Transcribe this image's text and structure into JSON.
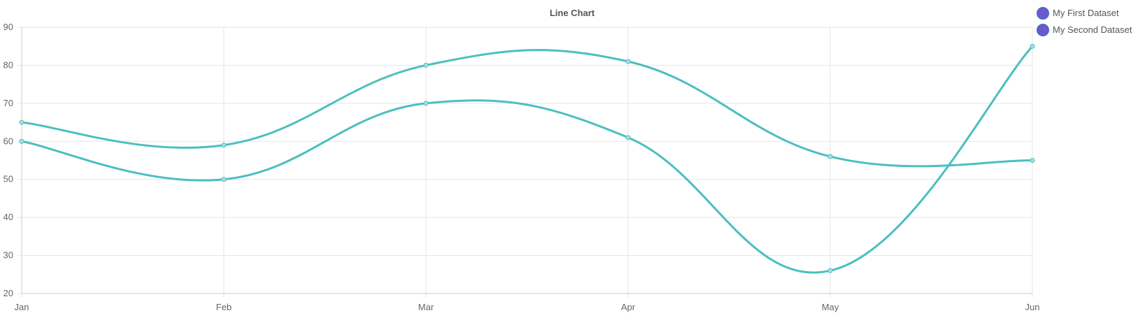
{
  "chart_data": {
    "type": "line",
    "title": "Line Chart",
    "categories": [
      "Jan",
      "Feb",
      "Mar",
      "Apr",
      "May",
      "Jun"
    ],
    "series": [
      {
        "name": "My First Dataset",
        "values": [
          65,
          59,
          80,
          81,
          56,
          55
        ]
      },
      {
        "name": "My Second Dataset",
        "values": [
          60,
          50,
          70,
          61,
          26,
          85
        ]
      }
    ],
    "y_ticks": [
      20,
      30,
      40,
      50,
      60,
      70,
      80,
      90
    ],
    "ylim": [
      20,
      90
    ],
    "grid": true,
    "legend_position": "top-right"
  },
  "colors": {
    "line": "#4bbfbf",
    "point_fill": "#a9dde2",
    "legend_swatch": "#6a5acd",
    "legend_swatch_border": "#4a66c9",
    "grid": "#e5e5e5",
    "axis": "#cccccc"
  }
}
